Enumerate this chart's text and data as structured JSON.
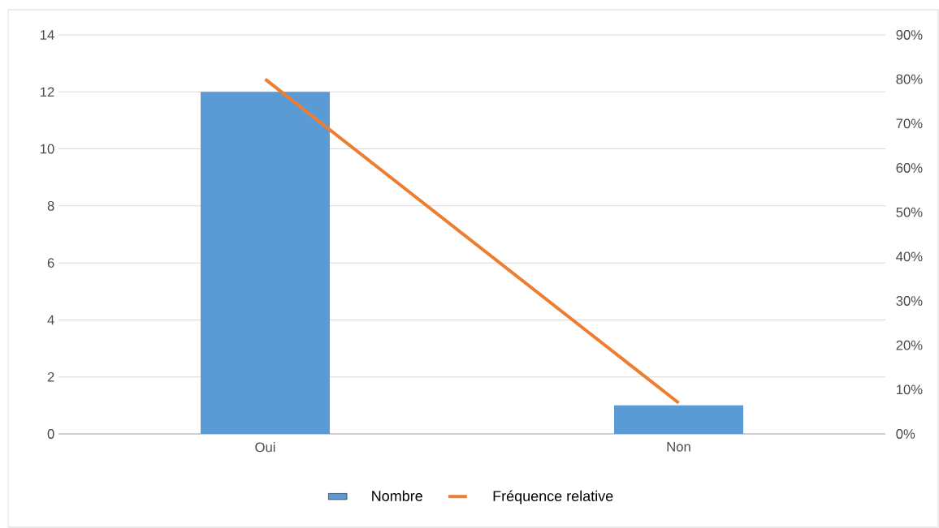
{
  "chart_data": {
    "type": "bar",
    "categories": [
      "Oui",
      "Non"
    ],
    "series": [
      {
        "name": "Nombre",
        "color": "#5b9bd5",
        "values": [
          12,
          1
        ]
      },
      {
        "name": "Fréquence relative",
        "color": "#ed7d31",
        "type": "line",
        "axis": "y2",
        "values": [
          80,
          7
        ]
      }
    ],
    "ylim": [
      0,
      14
    ],
    "yticks": [
      0,
      2,
      4,
      6,
      8,
      10,
      12,
      14
    ],
    "y2lim": [
      0,
      90
    ],
    "y2ticks": [
      {
        "value": 0,
        "label": "0%"
      },
      {
        "value": 10,
        "label": "10%"
      },
      {
        "value": 20,
        "label": "20%"
      },
      {
        "value": 30,
        "label": "30%"
      },
      {
        "value": 40,
        "label": "40%"
      },
      {
        "value": 50,
        "label": "50%"
      },
      {
        "value": 60,
        "label": "60%"
      },
      {
        "value": 70,
        "label": "70%"
      },
      {
        "value": 80,
        "label": "80%"
      },
      {
        "value": 90,
        "label": "90%"
      }
    ],
    "grid": "y",
    "legend": "bottom"
  }
}
